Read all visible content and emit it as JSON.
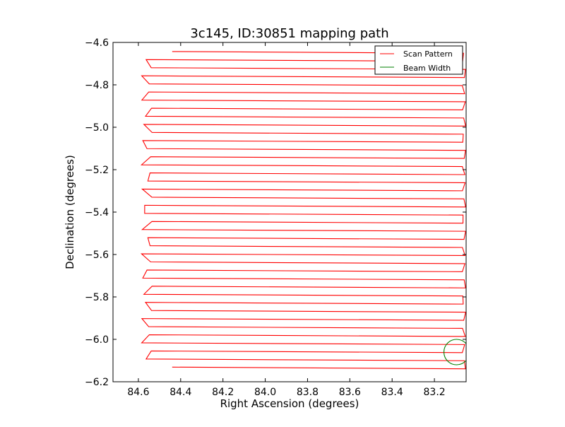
{
  "chart_data": {
    "type": "line",
    "title": "3c145, ID:30851 mapping path",
    "xlabel": "Right Ascension (degrees)",
    "ylabel": "Declination (degrees)",
    "xlim": [
      84.72,
      83.05
    ],
    "ylim": [
      -6.2,
      -4.6
    ],
    "xticks": [
      84.6,
      84.4,
      84.2,
      84.0,
      83.8,
      83.6,
      83.4,
      83.2
    ],
    "xtick_labels": [
      "84.6",
      "84.4",
      "84.2",
      "84.0",
      "83.8",
      "83.6",
      "83.4",
      "83.2"
    ],
    "yticks": [
      -4.6,
      -4.8,
      -5.0,
      -5.2,
      -5.4,
      -5.6,
      -5.8,
      -6.0,
      -6.2
    ],
    "ytick_labels": [
      "−4.6",
      "−4.8",
      "−5.0",
      "−5.2",
      "−5.4",
      "−5.6",
      "−5.8",
      "−6.0",
      "−6.2"
    ],
    "grid": false,
    "legend_position": "top-right",
    "series": [
      {
        "name": "Scan Pattern",
        "color": "#ff0000",
        "scan": {
          "ra_west": 84.56,
          "ra_east": 83.06,
          "dec_start": -4.647,
          "dec_end": -6.135,
          "row_count": 40,
          "first_row_ra_start": 84.44,
          "last_row_ra_end": 84.44
        }
      },
      {
        "name": "Beam Width",
        "color": "#008000",
        "circle": {
          "ra": 83.095,
          "dec": -6.06,
          "radius_deg": 0.06
        }
      }
    ]
  }
}
